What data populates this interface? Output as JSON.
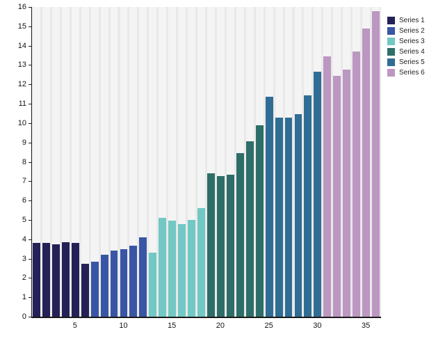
{
  "chart_data": {
    "type": "bar",
    "title": "",
    "xlabel": "",
    "ylabel": "",
    "ylim": [
      0,
      16
    ],
    "yticks": [
      0,
      1,
      2,
      3,
      4,
      5,
      6,
      7,
      8,
      9,
      10,
      11,
      12,
      13,
      14,
      15,
      16
    ],
    "xticks": [
      5,
      10,
      15,
      20,
      25,
      30,
      35
    ],
    "x_range": [
      1,
      36
    ],
    "grid": "vertical-stripes",
    "legend_position": "top-right-outside",
    "plot_background": "#e9e9e9",
    "stripe_color": "#f4f4f4",
    "axis_color": "#1a1a1a",
    "series": [
      {
        "name": "Series 1",
        "color": "#232156",
        "values": [
          3.8,
          3.8,
          3.75,
          3.85,
          3.8,
          2.75
        ]
      },
      {
        "name": "Series 2",
        "color": "#3956a5",
        "values": [
          2.85,
          3.2,
          3.4,
          3.5,
          3.65,
          4.1
        ]
      },
      {
        "name": "Series 3",
        "color": "#72c8c4",
        "values": [
          3.3,
          5.1,
          4.95,
          4.8,
          5.0,
          5.6
        ]
      },
      {
        "name": "Series 4",
        "color": "#2e6e68",
        "values": [
          7.4,
          7.25,
          7.35,
          8.45,
          9.05,
          9.9
        ]
      },
      {
        "name": "Series 5",
        "color": "#306d94",
        "values": [
          11.35,
          10.3,
          10.3,
          10.45,
          11.45,
          12.65
        ]
      },
      {
        "name": "Series 6",
        "color": "#bc97c1",
        "values": [
          13.45,
          12.45,
          12.75,
          13.7,
          14.9,
          15.8
        ]
      }
    ]
  },
  "legend": {
    "items": [
      {
        "label": "Series 1",
        "color": "#232156"
      },
      {
        "label": "Series 2",
        "color": "#3956a5"
      },
      {
        "label": "Series 3",
        "color": "#72c8c4"
      },
      {
        "label": "Series 4",
        "color": "#2e6e68"
      },
      {
        "label": "Series 5",
        "color": "#306d94"
      },
      {
        "label": "Series 6",
        "color": "#bc97c1"
      }
    ]
  }
}
